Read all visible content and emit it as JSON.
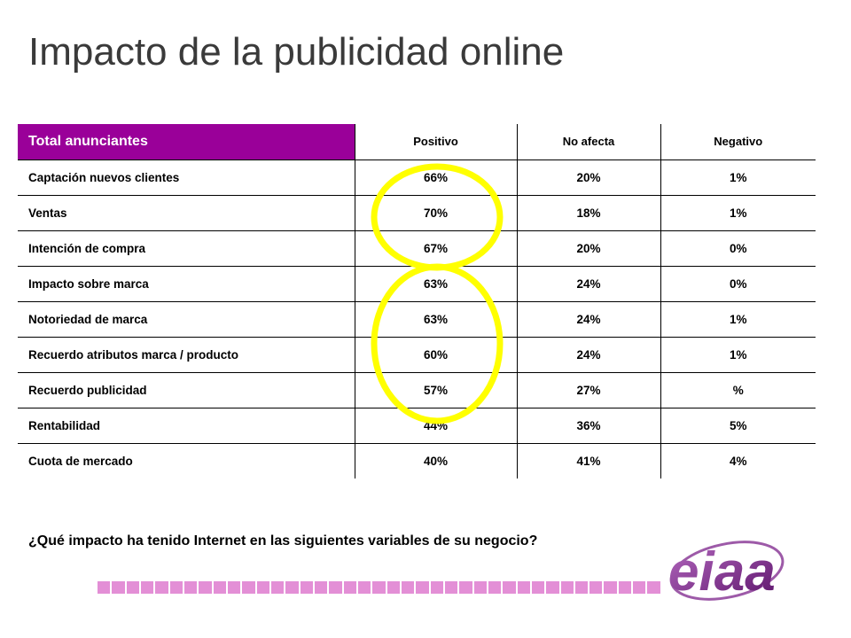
{
  "title": "Impacto de la publicidad online",
  "table": {
    "corner_label": "Total anunciantes",
    "columns": [
      "Positivo",
      "No afecta",
      "Negativo"
    ],
    "rows": [
      {
        "label": "Captación nuevos clientes",
        "positivo": "66%",
        "no_afecta": "20%",
        "negativo": "1%"
      },
      {
        "label": "Ventas",
        "positivo": "70%",
        "no_afecta": "18%",
        "negativo": "1%"
      },
      {
        "label": "Intención de compra",
        "positivo": "67%",
        "no_afecta": "20%",
        "negativo": "0%"
      },
      {
        "label": "Impacto sobre marca",
        "positivo": "63%",
        "no_afecta": "24%",
        "negativo": "0%"
      },
      {
        "label": "Notoriedad de marca",
        "positivo": "63%",
        "no_afecta": "24%",
        "negativo": "1%"
      },
      {
        "label": "Recuerdo atributos marca / producto",
        "positivo": "60%",
        "no_afecta": "24%",
        "negativo": "1%"
      },
      {
        "label": "Recuerdo publicidad",
        "positivo": "57%",
        "no_afecta": "27%",
        "negativo": "%"
      },
      {
        "label": "Rentabilidad",
        "positivo": "44%",
        "no_afecta": "36%",
        "negativo": "5%"
      },
      {
        "label": "Cuota de mercado",
        "positivo": "40%",
        "no_afecta": "41%",
        "negativo": "4%"
      }
    ]
  },
  "question": "¿Qué impacto ha tenido Internet en las siguientes variables de su negocio?",
  "colors": {
    "header_bg": "#9a0099",
    "highlight_circle": "#ffff00",
    "stripe": "#e38fd6",
    "logo": "#7a1f86"
  },
  "logo": {
    "name": "eiaa-logo",
    "text": "eiaa"
  }
}
